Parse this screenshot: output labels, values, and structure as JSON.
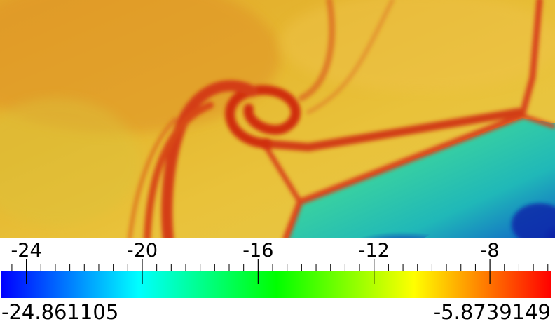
{
  "colorbar": {
    "tick_labels": [
      "-24",
      "-20",
      "-16",
      "-12",
      "-8"
    ],
    "tick_values": [
      -24,
      -20,
      -16,
      -12,
      -8
    ],
    "range_min": "-24.861105",
    "range_max": "-5.8739149",
    "min_value": -24.861105,
    "max_value": -5.8739149,
    "colormap": "rainbow (blue-cyan-green-yellow-red)",
    "colormap_stops": [
      "#0000ff",
      "#00ffff",
      "#00ff00",
      "#ffff00",
      "#ff0000"
    ]
  },
  "field": {
    "background_color": "#e6b62a",
    "shock_color": "#d43a10",
    "low_region_colors": [
      "#2fd7a0",
      "#1f9ad8",
      "#0a1ea8"
    ]
  }
}
